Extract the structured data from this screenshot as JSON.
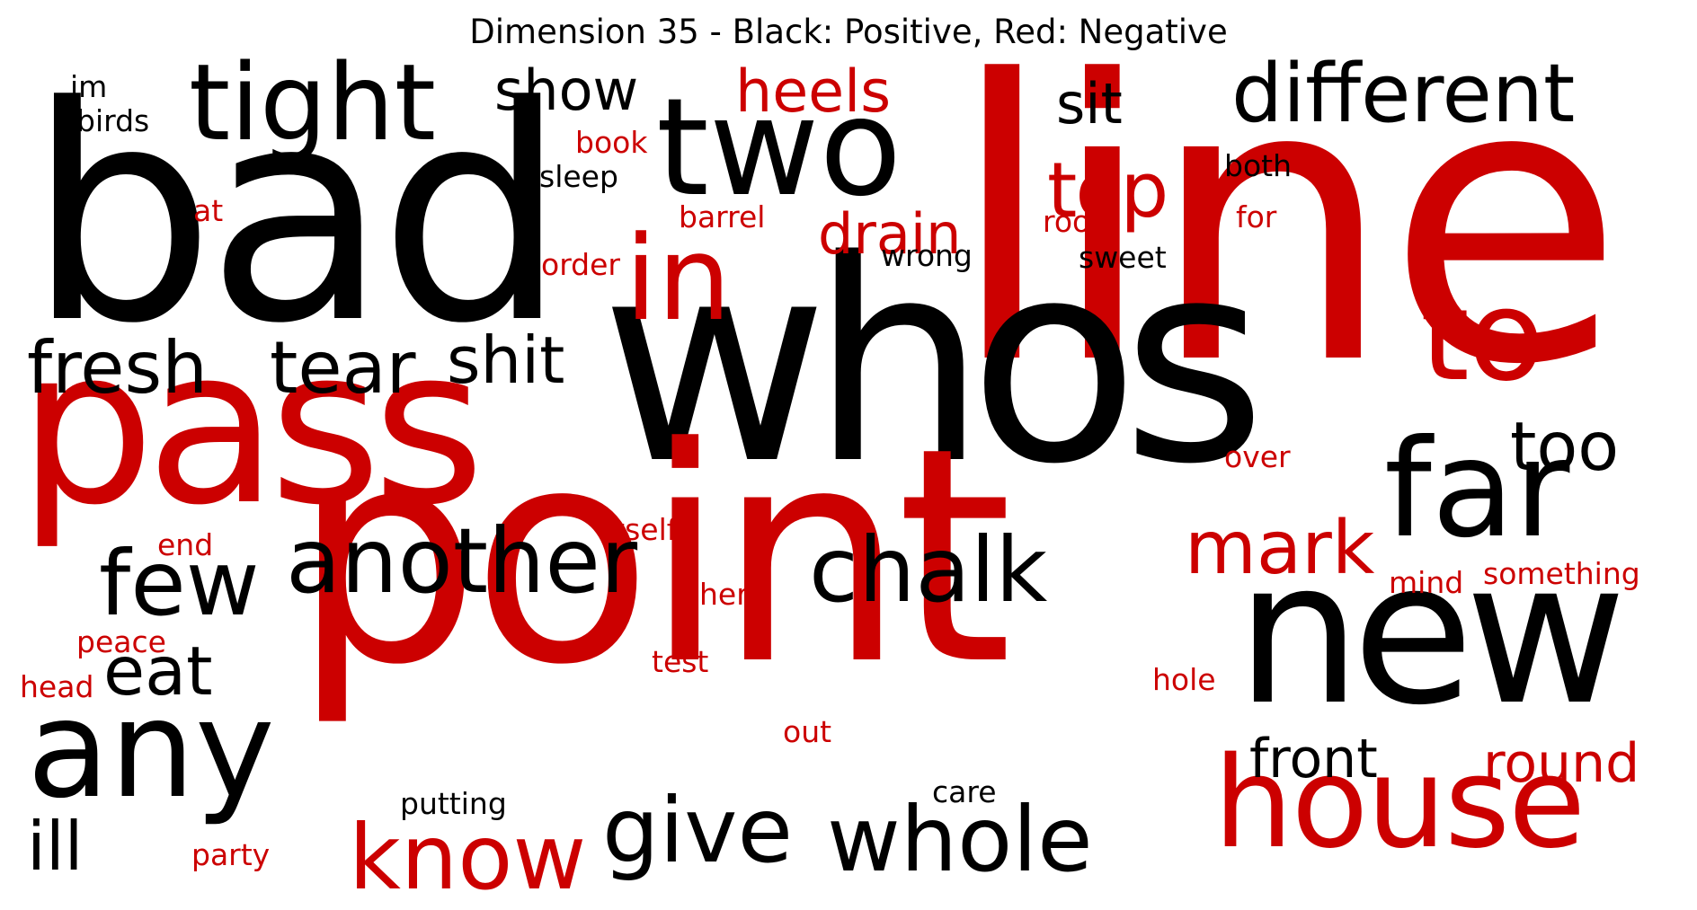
{
  "title": "Dimension 35 - Black: Positive, Red: Negative",
  "colors": {
    "positive": "#000000",
    "negative": "#cc0000"
  },
  "words": [
    {
      "text": "bad",
      "polarity": "positive"
    },
    {
      "text": "line",
      "polarity": "negative"
    },
    {
      "text": "whos",
      "polarity": "positive"
    },
    {
      "text": "point",
      "polarity": "negative"
    },
    {
      "text": "pass",
      "polarity": "negative"
    },
    {
      "text": "two",
      "polarity": "positive"
    },
    {
      "text": "tight",
      "polarity": "positive"
    },
    {
      "text": "different",
      "polarity": "positive"
    },
    {
      "text": "new",
      "polarity": "positive"
    },
    {
      "text": "house",
      "polarity": "negative"
    },
    {
      "text": "to",
      "polarity": "negative"
    },
    {
      "text": "far",
      "polarity": "positive"
    },
    {
      "text": "in",
      "polarity": "negative"
    },
    {
      "text": "another",
      "polarity": "positive"
    },
    {
      "text": "chalk",
      "polarity": "positive"
    },
    {
      "text": "few",
      "polarity": "positive"
    },
    {
      "text": "any",
      "polarity": "positive"
    },
    {
      "text": "fresh",
      "polarity": "positive"
    },
    {
      "text": "tear",
      "polarity": "positive"
    },
    {
      "text": "shit",
      "polarity": "positive"
    },
    {
      "text": "top",
      "polarity": "negative"
    },
    {
      "text": "mark",
      "polarity": "negative"
    },
    {
      "text": "whole",
      "polarity": "positive"
    },
    {
      "text": "give",
      "polarity": "positive"
    },
    {
      "text": "know",
      "polarity": "negative"
    },
    {
      "text": "too",
      "polarity": "positive"
    },
    {
      "text": "heels",
      "polarity": "negative"
    },
    {
      "text": "show",
      "polarity": "positive"
    },
    {
      "text": "sit",
      "polarity": "positive"
    },
    {
      "text": "drain",
      "polarity": "negative"
    },
    {
      "text": "eat",
      "polarity": "positive"
    },
    {
      "text": "ill",
      "polarity": "positive"
    },
    {
      "text": "front",
      "polarity": "positive"
    },
    {
      "text": "round",
      "polarity": "negative"
    },
    {
      "text": "birds",
      "polarity": "positive"
    },
    {
      "text": "im",
      "polarity": "positive"
    },
    {
      "text": "book",
      "polarity": "negative"
    },
    {
      "text": "sleep",
      "polarity": "positive"
    },
    {
      "text": "barrel",
      "polarity": "negative"
    },
    {
      "text": "at",
      "polarity": "negative"
    },
    {
      "text": "order",
      "polarity": "negative"
    },
    {
      "text": "wrong",
      "polarity": "positive"
    },
    {
      "text": "both",
      "polarity": "positive"
    },
    {
      "text": "room",
      "polarity": "negative"
    },
    {
      "text": "for",
      "polarity": "negative"
    },
    {
      "text": "sweet",
      "polarity": "positive"
    },
    {
      "text": "over",
      "polarity": "negative"
    },
    {
      "text": "itself",
      "polarity": "negative"
    },
    {
      "text": "end",
      "polarity": "negative"
    },
    {
      "text": "here",
      "polarity": "negative"
    },
    {
      "text": "mind",
      "polarity": "negative"
    },
    {
      "text": "something",
      "polarity": "negative"
    },
    {
      "text": "peace",
      "polarity": "negative"
    },
    {
      "text": "test",
      "polarity": "negative"
    },
    {
      "text": "head",
      "polarity": "negative"
    },
    {
      "text": "hole",
      "polarity": "negative"
    },
    {
      "text": "out",
      "polarity": "negative"
    },
    {
      "text": "care",
      "polarity": "positive"
    },
    {
      "text": "putting",
      "polarity": "positive"
    },
    {
      "text": "party",
      "polarity": "negative"
    }
  ]
}
